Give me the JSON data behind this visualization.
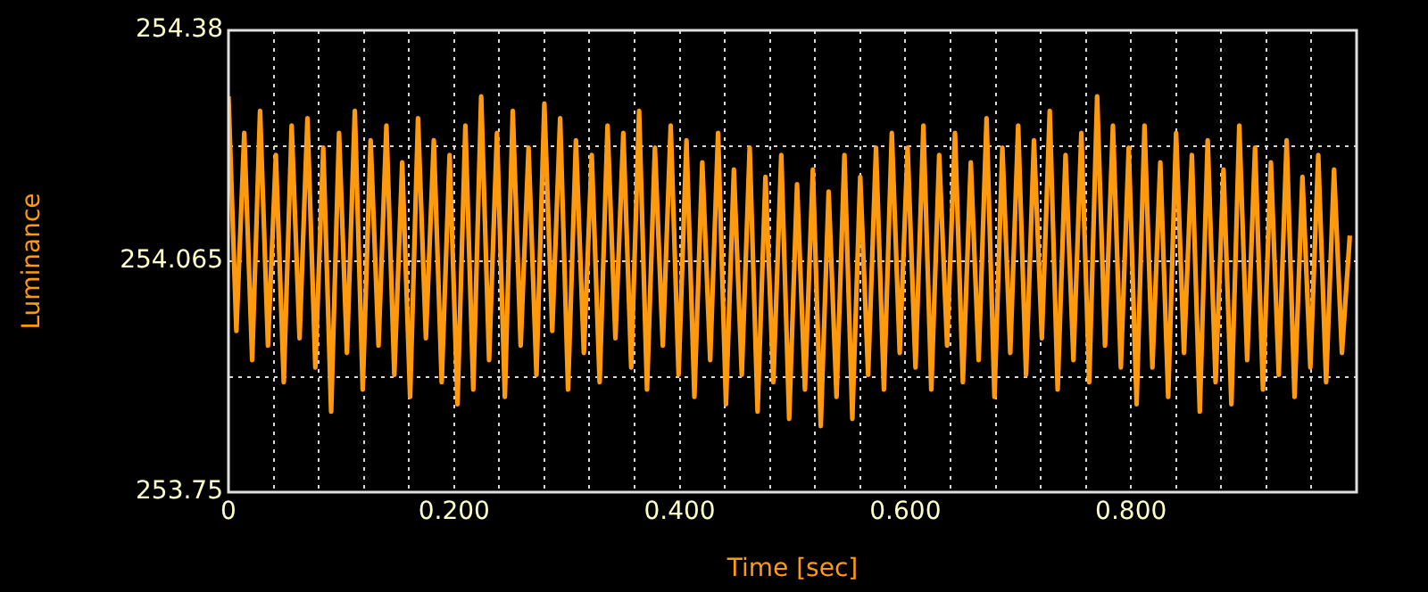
{
  "chart_data": {
    "type": "line",
    "xlabel": "Time [sec]",
    "ylabel": "Luminance",
    "x": [
      0,
      0.007,
      0.014,
      0.021,
      0.028,
      0.035,
      0.042,
      0.049,
      0.056,
      0.063,
      0.07,
      0.077,
      0.084,
      0.091,
      0.098,
      0.105,
      0.112,
      0.119,
      0.126,
      0.133,
      0.14,
      0.147,
      0.154,
      0.161,
      0.168,
      0.175,
      0.182,
      0.189,
      0.196,
      0.203,
      0.21,
      0.217,
      0.224,
      0.231,
      0.238,
      0.245,
      0.252,
      0.259,
      0.266,
      0.273,
      0.28,
      0.287,
      0.294,
      0.301,
      0.308,
      0.315,
      0.322,
      0.329,
      0.336,
      0.343,
      0.35,
      0.357,
      0.364,
      0.371,
      0.378,
      0.385,
      0.392,
      0.399,
      0.406,
      0.413,
      0.42,
      0.427,
      0.434,
      0.441,
      0.448,
      0.455,
      0.462,
      0.469,
      0.476,
      0.483,
      0.49,
      0.497,
      0.504,
      0.511,
      0.518,
      0.525,
      0.532,
      0.539,
      0.546,
      0.553,
      0.56,
      0.567,
      0.574,
      0.581,
      0.588,
      0.595,
      0.602,
      0.609,
      0.616,
      0.623,
      0.63,
      0.637,
      0.644,
      0.651,
      0.658,
      0.665,
      0.672,
      0.679,
      0.686,
      0.693,
      0.7,
      0.707,
      0.714,
      0.721,
      0.728,
      0.735,
      0.742,
      0.749,
      0.756,
      0.763,
      0.77,
      0.777,
      0.784,
      0.791,
      0.798,
      0.805,
      0.812,
      0.819,
      0.826,
      0.833,
      0.84,
      0.847,
      0.854,
      0.861,
      0.868,
      0.875,
      0.882,
      0.889,
      0.896,
      0.903,
      0.91,
      0.917,
      0.924,
      0.931,
      0.938,
      0.945,
      0.952,
      0.959,
      0.966,
      0.973,
      0.98,
      0.987,
      0.994
    ],
    "series": [
      {
        "color": "#ff9a0e",
        "values": [
          254.29,
          253.97,
          254.24,
          253.93,
          254.27,
          253.95,
          254.21,
          253.9,
          254.25,
          253.96,
          254.26,
          253.92,
          254.22,
          253.86,
          254.24,
          253.94,
          254.27,
          253.89,
          254.23,
          253.95,
          254.25,
          253.91,
          254.2,
          253.88,
          254.26,
          253.96,
          254.23,
          253.9,
          254.21,
          253.87,
          254.25,
          253.89,
          254.29,
          253.93,
          254.24,
          253.88,
          254.27,
          253.95,
          254.22,
          253.91,
          254.28,
          253.97,
          254.26,
          253.89,
          254.23,
          253.94,
          254.21,
          253.9,
          254.25,
          253.96,
          254.24,
          253.92,
          254.27,
          253.89,
          254.22,
          253.95,
          254.25,
          253.91,
          254.23,
          253.88,
          254.2,
          253.93,
          254.24,
          253.87,
          254.19,
          253.91,
          254.22,
          253.86,
          254.18,
          253.9,
          254.21,
          253.85,
          254.17,
          253.89,
          254.19,
          253.84,
          254.16,
          253.88,
          254.21,
          253.85,
          254.18,
          253.91,
          254.22,
          253.89,
          254.24,
          253.94,
          254.22,
          253.92,
          254.25,
          253.89,
          254.21,
          253.95,
          254.24,
          253.9,
          254.2,
          253.93,
          254.26,
          253.88,
          254.22,
          253.94,
          254.25,
          253.91,
          254.23,
          253.96,
          254.27,
          253.89,
          254.21,
          253.93,
          254.24,
          253.9,
          254.29,
          253.95,
          254.25,
          253.92,
          254.22,
          253.87,
          254.25,
          253.92,
          254.2,
          253.88,
          254.24,
          253.94,
          254.21,
          253.86,
          254.23,
          253.9,
          254.19,
          253.87,
          254.25,
          253.93,
          254.22,
          253.89,
          254.2,
          253.91,
          254.23,
          253.88,
          254.18,
          253.92,
          254.21,
          253.9,
          254.19,
          253.94,
          254.1
        ]
      }
    ],
    "xlim": [
      0,
      1
    ],
    "xticks": [
      0,
      {
        "value": 0.04,
        "label": null
      },
      {
        "value": 0.08,
        "label": null
      },
      {
        "value": 0.12,
        "label": null
      },
      {
        "value": 0.16,
        "label": null
      },
      {
        "value": 0.2,
        "label": "0.200"
      },
      {
        "value": 0.24,
        "label": null
      },
      {
        "value": 0.28,
        "label": null
      },
      {
        "value": 0.32,
        "label": null
      },
      {
        "value": 0.36,
        "label": null
      },
      {
        "value": 0.4,
        "label": "0.400"
      },
      {
        "value": 0.44,
        "label": null
      },
      {
        "value": 0.48,
        "label": null
      },
      {
        "value": 0.52,
        "label": null
      },
      {
        "value": 0.56,
        "label": null
      },
      {
        "value": 0.6,
        "label": "0.600"
      },
      {
        "value": 0.64,
        "label": null
      },
      {
        "value": 0.68,
        "label": null
      },
      {
        "value": 0.72,
        "label": null
      },
      {
        "value": 0.76,
        "label": null
      },
      {
        "value": 0.8,
        "label": "0.800"
      },
      {
        "value": 0.84,
        "label": null
      },
      {
        "value": 0.88,
        "label": null
      },
      {
        "value": 0.92,
        "label": null
      },
      {
        "value": 0.96,
        "label": null
      }
    ],
    "ylim": [
      253.75,
      254.38
    ],
    "yticks": [
      253.75,
      {
        "value": 253.9075,
        "label": null
      },
      254.065,
      {
        "value": 254.2225,
        "label": null
      },
      254.38
    ],
    "grid": true,
    "legend": false,
    "marker": "none",
    "line_style": "solid"
  }
}
